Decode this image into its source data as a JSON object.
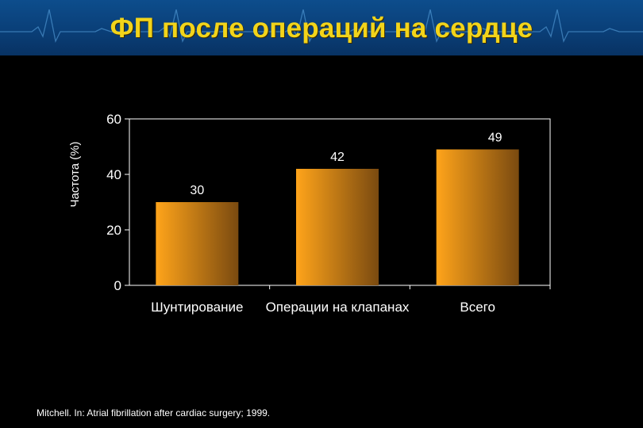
{
  "slide": {
    "title": "ФП после операций на сердце",
    "source": "Mitchell. In: Atrial fibrillation after cardiac surgery; 1999."
  },
  "colors": {
    "header_bg": "#0b457f",
    "title": "#f2d41a",
    "bar_light": "#ffa41a",
    "bar_dark": "#7a4a10",
    "background": "#000000",
    "text": "#ffffff"
  },
  "chart_data": {
    "type": "bar",
    "categories": [
      "Шунтирование",
      "Операции на клапанах",
      "Всего"
    ],
    "values": [
      30,
      42,
      49
    ],
    "data_labels": [
      "30",
      "42",
      "49"
    ],
    "ylabel": "Частота (%)",
    "ylim": [
      0,
      60
    ],
    "yticks": [
      0,
      20,
      40,
      60
    ],
    "grid": false,
    "legend": "none"
  }
}
